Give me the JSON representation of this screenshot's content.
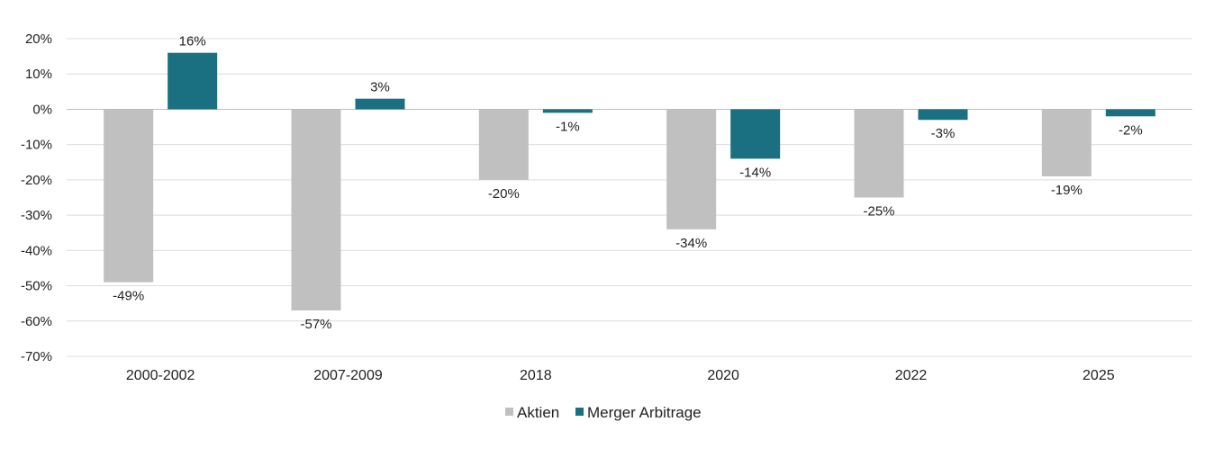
{
  "chart_data": {
    "type": "bar",
    "categories": [
      "2000-2002",
      "2007-2009",
      "2018",
      "2020",
      "2022",
      "2025"
    ],
    "series": [
      {
        "name": "Aktien",
        "values": [
          -49,
          -57,
          -20,
          -34,
          -25,
          -19
        ],
        "color": "#c0c0c0",
        "labels": [
          "-49%",
          "-57%",
          "-20%",
          "-34%",
          "-25%",
          "-19%"
        ]
      },
      {
        "name": "Merger Arbitrage",
        "values": [
          16,
          3,
          -1,
          -14,
          -3,
          -2
        ],
        "color": "#1a6f80",
        "labels": [
          "16%",
          "3%",
          "-1%",
          "-14%",
          "-3%",
          "-2%"
        ]
      }
    ],
    "ylim": [
      -70,
      20
    ],
    "yticks": [
      20,
      10,
      0,
      -10,
      -20,
      -30,
      -40,
      -50,
      -60,
      -70
    ],
    "ytick_labels": [
      "20%",
      "10%",
      "0%",
      "-10%",
      "-20%",
      "-30%",
      "-40%",
      "-50%",
      "-60%",
      "-70%"
    ],
    "grid": true,
    "legend_position": "bottom-center",
    "title": "",
    "xlabel": "",
    "ylabel": ""
  }
}
